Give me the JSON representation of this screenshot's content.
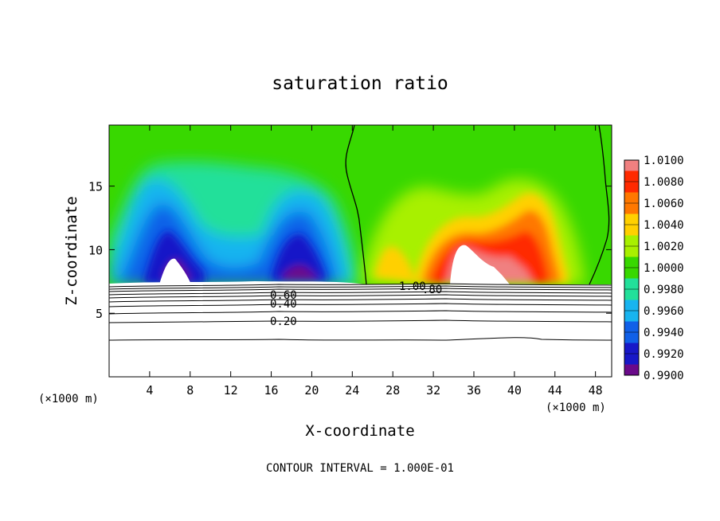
{
  "chart_data": {
    "type": "heatmap",
    "title": "saturation ratio",
    "xlabel": "X-coordinate",
    "ylabel": "Z-coordinate",
    "x_unit_left": "(×1000 m)",
    "x_unit_right": "(×1000 m)",
    "xlim": [
      0,
      49.6
    ],
    "ylim": [
      0,
      19.8
    ],
    "x_ticks": [
      4,
      8,
      12,
      16,
      20,
      24,
      28,
      32,
      36,
      40,
      44,
      48
    ],
    "y_ticks": [
      5,
      10,
      15
    ],
    "colorbar": {
      "levels": [
        "1.0100",
        "1.0080",
        "1.0060",
        "1.0040",
        "1.0020",
        "1.0000",
        "0.9980",
        "0.9960",
        "0.9940",
        "0.9920",
        "0.9900"
      ],
      "colors": [
        "#f08080",
        "#ff2a00",
        "#ff7800",
        "#ffd000",
        "#a8f000",
        "#38d800",
        "#22e09a",
        "#18b4f0",
        "#1060e8",
        "#1818c8",
        "#6a0a8a"
      ]
    },
    "contour_labels": [
      {
        "text": "1.00",
        "x": 29.8,
        "y": 7.0
      },
      {
        "text": ".80",
        "x": 32.0,
        "y": 6.9
      },
      {
        "text": "0.60",
        "x": 13.8,
        "y": 6.4
      },
      {
        "text": "0.40",
        "x": 13.8,
        "y": 5.7
      },
      {
        "text": "0.20",
        "x": 13.8,
        "y": 4.3
      }
    ],
    "contour_interval_text": "CONTOUR INTERVAL = 1.000E-01"
  }
}
